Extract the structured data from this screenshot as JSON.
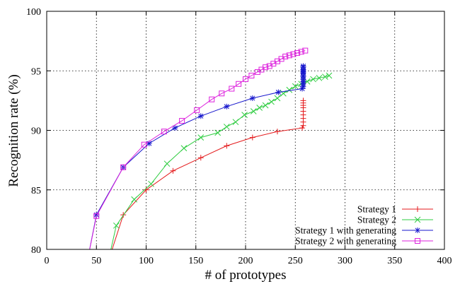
{
  "chart_data": {
    "type": "line",
    "xlabel": "# of prototypes",
    "ylabel": "Recognition rate (%)",
    "xlim": [
      0,
      400
    ],
    "ylim": [
      80,
      100
    ],
    "xticks": [
      "0",
      "50",
      "100",
      "150",
      "200",
      "250",
      "300",
      "350",
      "400"
    ],
    "yticks": [
      "80",
      "85",
      "90",
      "95",
      "100"
    ],
    "xtick_values": [
      0,
      50,
      100,
      150,
      200,
      250,
      300,
      350,
      400
    ],
    "ytick_values": [
      80,
      85,
      90,
      95,
      100
    ],
    "grid": true,
    "legend_position": "bottom-right",
    "series": [
      {
        "name": "Strategy 1",
        "color": "#e41a1c",
        "marker": "plus",
        "x": [
          60,
          77,
          100,
          127,
          155,
          181,
          207,
          232,
          257,
          258,
          258,
          258,
          258,
          258,
          258,
          258,
          258,
          258
        ],
        "y": [
          78.5,
          82.9,
          85.0,
          86.6,
          87.7,
          88.7,
          89.4,
          89.9,
          90.2,
          90.4,
          90.7,
          91.0,
          91.3,
          91.6,
          91.9,
          92.1,
          92.3,
          92.5
        ]
      },
      {
        "name": "Strategy 2",
        "color": "#2ecc40",
        "marker": "cross",
        "x": [
          60,
          70,
          88,
          105,
          121,
          138,
          155,
          172,
          181,
          190,
          199,
          208,
          214,
          220,
          226,
          232,
          238,
          244,
          250,
          256,
          262,
          268,
          274,
          280,
          284
        ],
        "y": [
          78.3,
          82.0,
          84.2,
          85.5,
          87.2,
          88.5,
          89.4,
          89.8,
          90.3,
          90.7,
          91.3,
          91.6,
          91.9,
          92.1,
          92.4,
          92.7,
          93.1,
          93.4,
          93.7,
          93.9,
          94.1,
          94.3,
          94.4,
          94.5,
          94.6
        ],
        "label": "Strategy 2"
      },
      {
        "name": "Strategy 1 with generating",
        "color": "#1515cc",
        "marker": "star",
        "x": [
          42,
          50,
          77,
          103,
          129,
          155,
          181,
          207,
          233,
          257,
          258,
          258,
          258,
          258,
          258,
          258,
          258,
          258,
          258,
          258,
          258,
          258
        ],
        "y": [
          79.5,
          82.9,
          86.9,
          88.9,
          90.2,
          91.2,
          92.0,
          92.7,
          93.2,
          93.5,
          93.7,
          93.9,
          94.1,
          94.3,
          94.5,
          94.6,
          94.8,
          94.9,
          95.0,
          95.1,
          95.3,
          95.4
        ]
      },
      {
        "name": "Strategy 2 with generating",
        "color": "#dd22dd",
        "marker": "square",
        "x": [
          42,
          50,
          77,
          98,
          118,
          136,
          151,
          166,
          176,
          186,
          193,
          200,
          206,
          212,
          216,
          220,
          224,
          228,
          232,
          236,
          240,
          244,
          248,
          252,
          256,
          260
        ],
        "y": [
          79.5,
          82.8,
          86.9,
          88.8,
          89.9,
          90.8,
          91.7,
          92.6,
          93.1,
          93.5,
          93.9,
          94.3,
          94.6,
          94.9,
          95.1,
          95.3,
          95.4,
          95.6,
          95.8,
          96.0,
          96.2,
          96.3,
          96.4,
          96.5,
          96.6,
          96.7
        ]
      }
    ]
  }
}
